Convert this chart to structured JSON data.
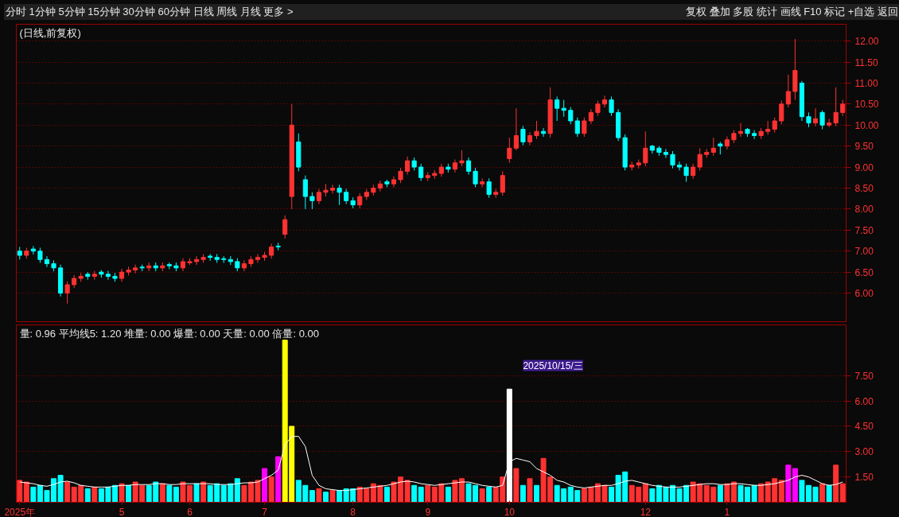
{
  "chart_data": [
    {
      "type": "candlestick",
      "title": "(日线,前复权)",
      "annotations": [
        "分时 1分钟 5分钟 15分钟 30分钟 60分钟 日线 周线 月线 更多 >",
        "复权 叠加 多股 统计 画线 F10 标记 +自选 返回"
      ],
      "categories": [
        null,
        null,
        null,
        null,
        null,
        null,
        null,
        null,
        null,
        null,
        null,
        null,
        null,
        null,
        null,
        null,
        null,
        null,
        null,
        null,
        null,
        null,
        null,
        null,
        null,
        null,
        null,
        null,
        null,
        null,
        null,
        null,
        null,
        null,
        null,
        null,
        null,
        null,
        null,
        null,
        null,
        null,
        null,
        null,
        null,
        null,
        null,
        null,
        null,
        null,
        null,
        null,
        null,
        null,
        null,
        null,
        null,
        null,
        null,
        null,
        null,
        null,
        null,
        null,
        null,
        null,
        null,
        null,
        null,
        null,
        null,
        null,
        null,
        null,
        null,
        null,
        null,
        null,
        null,
        null,
        null,
        null,
        null,
        null,
        null,
        null,
        null,
        null,
        null,
        null,
        null,
        null,
        null,
        null,
        null,
        null,
        null,
        null,
        null,
        null,
        null,
        null,
        null,
        null,
        null,
        null,
        null,
        null,
        null,
        null,
        null,
        null,
        null,
        null,
        null,
        null,
        null,
        null,
        null,
        null,
        null,
        null
      ],
      "ohlc": [
        [
          7.0,
          7.1,
          6.8,
          6.9
        ],
        [
          6.9,
          7.08,
          6.82,
          7.0
        ],
        [
          7.05,
          7.12,
          6.92,
          7.0
        ],
        [
          7.0,
          7.08,
          6.72,
          6.8
        ],
        [
          6.8,
          6.88,
          6.62,
          6.7
        ],
        [
          6.7,
          6.78,
          6.52,
          6.6
        ],
        [
          6.6,
          6.68,
          5.92,
          6.0
        ],
        [
          6.0,
          6.28,
          5.75,
          6.2
        ],
        [
          6.2,
          6.43,
          6.12,
          6.35
        ],
        [
          6.35,
          6.48,
          6.27,
          6.4
        ],
        [
          6.45,
          6.5,
          6.32,
          6.4
        ],
        [
          6.4,
          6.53,
          6.32,
          6.45
        ],
        [
          6.5,
          6.55,
          6.37,
          6.45
        ],
        [
          6.45,
          6.53,
          6.32,
          6.4
        ],
        [
          6.4,
          6.48,
          6.27,
          6.35
        ],
        [
          6.35,
          6.58,
          6.27,
          6.5
        ],
        [
          6.5,
          6.63,
          6.42,
          6.55
        ],
        [
          6.55,
          6.68,
          6.47,
          6.6
        ],
        [
          6.62,
          6.68,
          6.52,
          6.6
        ],
        [
          6.6,
          6.73,
          6.52,
          6.65
        ],
        [
          6.65,
          6.73,
          6.52,
          6.6
        ],
        [
          6.6,
          6.73,
          6.52,
          6.65
        ],
        [
          6.68,
          6.73,
          6.57,
          6.65
        ],
        [
          6.65,
          6.73,
          6.52,
          6.6
        ],
        [
          6.6,
          6.83,
          6.52,
          6.75
        ],
        [
          6.72,
          6.83,
          6.67,
          6.75
        ],
        [
          6.75,
          6.88,
          6.67,
          6.8
        ],
        [
          6.8,
          6.93,
          6.72,
          6.85
        ],
        [
          6.88,
          6.93,
          6.77,
          6.85
        ],
        [
          6.85,
          6.93,
          6.72,
          6.8
        ],
        [
          6.82,
          6.88,
          6.72,
          6.8
        ],
        [
          6.8,
          6.88,
          6.67,
          6.75
        ],
        [
          6.75,
          6.83,
          6.52,
          6.6
        ],
        [
          6.6,
          6.78,
          6.52,
          6.7
        ],
        [
          6.7,
          6.88,
          6.62,
          6.8
        ],
        [
          6.8,
          6.93,
          6.72,
          6.85
        ],
        [
          6.85,
          6.98,
          6.77,
          6.9
        ],
        [
          6.9,
          7.18,
          6.82,
          7.1
        ],
        [
          7.12,
          7.2,
          7.02,
          7.1
        ],
        [
          7.4,
          7.85,
          7.3,
          7.75
        ],
        [
          8.3,
          10.5,
          8.0,
          10.0
        ],
        [
          9.6,
          9.8,
          8.9,
          9.0
        ],
        [
          8.7,
          8.8,
          8.0,
          8.3
        ],
        [
          8.3,
          8.4,
          8.0,
          8.2
        ],
        [
          8.2,
          8.48,
          8.12,
          8.4
        ],
        [
          8.4,
          8.6,
          8.3,
          8.45
        ],
        [
          8.45,
          8.58,
          8.37,
          8.5
        ],
        [
          8.5,
          8.58,
          8.1,
          8.4
        ],
        [
          8.4,
          8.48,
          8.12,
          8.2
        ],
        [
          8.2,
          8.28,
          8.02,
          8.1
        ],
        [
          8.1,
          8.38,
          8.02,
          8.3
        ],
        [
          8.3,
          8.48,
          8.22,
          8.4
        ],
        [
          8.4,
          8.58,
          8.32,
          8.5
        ],
        [
          8.5,
          8.68,
          8.42,
          8.6
        ],
        [
          8.65,
          8.7,
          8.52,
          8.6
        ],
        [
          8.6,
          8.78,
          8.52,
          8.7
        ],
        [
          8.7,
          8.98,
          8.62,
          8.9
        ],
        [
          8.9,
          9.25,
          8.82,
          9.15
        ],
        [
          9.15,
          9.23,
          8.92,
          9.0
        ],
        [
          9.0,
          9.08,
          8.67,
          8.75
        ],
        [
          8.75,
          8.88,
          8.67,
          8.8
        ],
        [
          8.8,
          8.93,
          8.72,
          8.85
        ],
        [
          8.85,
          9.08,
          8.77,
          9.0
        ],
        [
          9.0,
          9.08,
          8.87,
          8.95
        ],
        [
          8.95,
          9.18,
          8.87,
          9.1
        ],
        [
          9.1,
          9.4,
          9.02,
          9.15
        ],
        [
          9.15,
          9.23,
          8.82,
          8.9
        ],
        [
          8.9,
          8.98,
          8.52,
          8.6
        ],
        [
          8.6,
          8.73,
          8.52,
          8.65
        ],
        [
          8.65,
          8.73,
          8.27,
          8.35
        ],
        [
          8.35,
          8.48,
          8.27,
          8.4
        ],
        [
          8.4,
          8.9,
          8.32,
          8.8
        ],
        [
          9.2,
          9.7,
          9.1,
          9.45
        ],
        [
          9.45,
          10.4,
          9.4,
          9.75
        ],
        [
          9.9,
          9.98,
          9.52,
          9.6
        ],
        [
          9.6,
          9.83,
          9.52,
          9.75
        ],
        [
          9.75,
          10.1,
          9.67,
          9.85
        ],
        [
          9.85,
          9.93,
          9.72,
          9.8
        ],
        [
          9.8,
          10.9,
          9.7,
          10.6
        ],
        [
          10.6,
          10.68,
          10.1,
          10.4
        ],
        [
          10.4,
          10.6,
          10.2,
          10.35
        ],
        [
          10.35,
          10.43,
          10.02,
          10.1
        ],
        [
          10.1,
          10.18,
          9.72,
          9.8
        ],
        [
          9.8,
          10.18,
          9.72,
          10.1
        ],
        [
          10.1,
          10.38,
          10.02,
          10.3
        ],
        [
          10.3,
          10.58,
          10.22,
          10.5
        ],
        [
          10.5,
          10.7,
          10.42,
          10.6
        ],
        [
          10.6,
          10.68,
          10.22,
          10.3
        ],
        [
          10.3,
          10.38,
          9.62,
          9.7
        ],
        [
          9.7,
          9.78,
          8.92,
          9.0
        ],
        [
          9.0,
          9.13,
          8.92,
          9.05
        ],
        [
          9.05,
          9.18,
          8.97,
          9.1
        ],
        [
          9.1,
          9.85,
          9.02,
          9.45
        ],
        [
          9.5,
          9.53,
          9.32,
          9.4
        ],
        [
          9.45,
          9.5,
          9.27,
          9.35
        ],
        [
          9.35,
          9.43,
          9.22,
          9.3
        ],
        [
          9.3,
          9.38,
          8.97,
          9.05
        ],
        [
          9.05,
          9.13,
          8.92,
          9.0
        ],
        [
          9.0,
          9.08,
          8.65,
          8.8
        ],
        [
          8.8,
          9.08,
          8.72,
          9.0
        ],
        [
          9.0,
          9.45,
          8.92,
          9.3
        ],
        [
          9.3,
          9.43,
          9.22,
          9.35
        ],
        [
          9.35,
          9.7,
          9.27,
          9.45
        ],
        [
          9.55,
          9.6,
          9.3,
          9.5
        ],
        [
          9.5,
          9.73,
          9.42,
          9.65
        ],
        [
          9.65,
          9.88,
          9.57,
          9.8
        ],
        [
          9.8,
          10.05,
          9.72,
          9.85
        ],
        [
          9.9,
          9.93,
          9.72,
          9.8
        ],
        [
          9.8,
          9.88,
          9.67,
          9.75
        ],
        [
          9.75,
          9.93,
          9.67,
          9.85
        ],
        [
          9.85,
          10.1,
          9.77,
          9.9
        ],
        [
          9.9,
          10.18,
          9.82,
          10.1
        ],
        [
          10.1,
          10.58,
          10.02,
          10.5
        ],
        [
          10.5,
          11.2,
          10.42,
          10.8
        ],
        [
          10.8,
          12.05,
          10.6,
          11.3
        ],
        [
          11.0,
          11.05,
          10.1,
          10.2
        ],
        [
          10.2,
          10.3,
          9.95,
          10.05
        ],
        [
          10.05,
          10.4,
          9.97,
          10.15
        ],
        [
          10.3,
          10.35,
          9.9,
          10.0
        ],
        [
          10.0,
          10.15,
          9.95,
          10.05
        ],
        [
          10.05,
          10.9,
          9.97,
          10.3
        ],
        [
          10.3,
          10.6,
          10.22,
          10.5
        ]
      ],
      "colors": [
        "#00ffff",
        "#ff3232",
        "#00ffff",
        "#00ffff",
        "#00ffff",
        "#00ffff",
        "#00ffff",
        "#ff3232",
        "#ff3232",
        "#ff3232",
        "#00ffff",
        "#ff3232",
        "#00ffff",
        "#00ffff",
        "#00ffff",
        "#ff3232",
        "#ff3232",
        "#ff3232",
        "#00ffff",
        "#ff3232",
        "#00ffff",
        "#ff3232",
        "#00ffff",
        "#00ffff",
        "#ff3232",
        "#ff3232",
        "#ff3232",
        "#ff3232",
        "#00ffff",
        "#00ffff",
        "#00ffff",
        "#00ffff",
        "#00ffff",
        "#ff3232",
        "#ff3232",
        "#ff3232",
        "#ff3232",
        "#ff3232",
        "#00ffff",
        "#ff3232",
        "#ff3232",
        "#00ffff",
        "#00ffff",
        "#00ffff",
        "#ff3232",
        "#ff3232",
        "#ff3232",
        "#00ffff",
        "#00ffff",
        "#00ffff",
        "#ff3232",
        "#ff3232",
        "#ff3232",
        "#ff3232",
        "#00ffff",
        "#ff3232",
        "#ff3232",
        "#ff3232",
        "#00ffff",
        "#00ffff",
        "#ff3232",
        "#ff3232",
        "#ff3232",
        "#00ffff",
        "#ff3232",
        "#ff3232",
        "#00ffff",
        "#00ffff",
        "#ff3232",
        "#00ffff",
        "#ff3232",
        "#ff3232",
        "#ff3232",
        "#ff3232",
        "#00ffff",
        "#ff3232",
        "#ff3232",
        "#00ffff",
        "#ff3232",
        "#00ffff",
        "#00ffff",
        "#00ffff",
        "#00ffff",
        "#ff3232",
        "#ff3232",
        "#ff3232",
        "#ff3232",
        "#00ffff",
        "#00ffff",
        "#00ffff",
        "#ff3232",
        "#ff3232",
        "#ff3232",
        "#00ffff",
        "#00ffff",
        "#00ffff",
        "#00ffff",
        "#00ffff",
        "#00ffff",
        "#ff3232",
        "#ff3232",
        "#ff3232",
        "#ff3232",
        "#00ffff",
        "#ff3232",
        "#ff3232",
        "#ff3232",
        "#00ffff",
        "#00ffff",
        "#ff3232",
        "#ff3232",
        "#ff3232",
        "#ff3232",
        "#ff3232",
        "#ff3232",
        "#00ffff",
        "#00ffff",
        "#ff3232",
        "#00ffff",
        "#ff3232",
        "#ff3232",
        "#ff3232"
      ],
      "ylim": [
        5.3,
        12.4
      ],
      "yticks": [
        {
          "value": 6,
          "label": "6.00"
        },
        {
          "value": 6.5,
          "label": "6.50"
        },
        {
          "value": 7,
          "label": "7.00"
        },
        {
          "value": 7.5,
          "label": "7.50"
        },
        {
          "value": 8,
          "label": "8.00"
        },
        {
          "value": 8.5,
          "label": "8.50"
        },
        {
          "value": 9,
          "label": "9.00"
        },
        {
          "value": 9.5,
          "label": "9.50"
        },
        {
          "value": 10,
          "label": "10.00"
        },
        {
          "value": 10.5,
          "label": "10.50"
        },
        {
          "value": 11,
          "label": "11.00"
        },
        {
          "value": 11.5,
          "label": "11.50"
        },
        {
          "value": 12,
          "label": "12.00"
        }
      ],
      "grid": "y"
    },
    {
      "type": "bar",
      "title": "量: 0.96 平均线5: 1.20 堆量: 0.00 爆量: 0.00 天量: 0.00 倍量: 0.00",
      "annotations": [
        "2025/10/15/三"
      ],
      "categories": [
        "2025年",
        null,
        null,
        null,
        null,
        null,
        null,
        null,
        null,
        null,
        null,
        null,
        null,
        null,
        null,
        "5",
        null,
        null,
        null,
        null,
        null,
        null,
        null,
        null,
        null,
        "6",
        null,
        null,
        null,
        null,
        null,
        null,
        null,
        null,
        null,
        null,
        "7",
        null,
        null,
        null,
        null,
        null,
        null,
        null,
        null,
        null,
        null,
        null,
        null,
        "8",
        null,
        null,
        null,
        null,
        null,
        null,
        null,
        null,
        null,
        null,
        "9",
        null,
        null,
        null,
        null,
        null,
        null,
        null,
        null,
        null,
        null,
        null,
        "10",
        null,
        null,
        null,
        null,
        null,
        null,
        null,
        null,
        null,
        null,
        null,
        null,
        null,
        null,
        null,
        null,
        null,
        null,
        null,
        "12",
        null,
        null,
        null,
        null,
        null,
        null,
        null,
        null,
        null,
        null,
        null,
        "1",
        null,
        null,
        null,
        null,
        null,
        null,
        null,
        null,
        null,
        null,
        null,
        null,
        null,
        null,
        null,
        null,
        null
      ],
      "series": [
        {
          "type": "bar",
          "values": [
            1.3,
            1.2,
            0.9,
            1.0,
            0.7,
            1.4,
            1.6,
            1.2,
            0.9,
            1.0,
            0.8,
            0.9,
            0.8,
            0.9,
            1.0,
            1.1,
            1.0,
            1.2,
            1.0,
            1.0,
            1.2,
            1.1,
            1.0,
            0.9,
            1.2,
            1.0,
            1.1,
            1.2,
            1.0,
            1.1,
            1.0,
            1.1,
            1.4,
            1.0,
            1.2,
            1.3,
            2.0,
            1.5,
            2.7,
            9.6,
            4.5,
            1.3,
            1.0,
            0.7,
            0.8,
            0.6,
            0.7,
            0.7,
            0.8,
            0.8,
            0.9,
            0.8,
            1.1,
            1.0,
            0.9,
            1.2,
            1.5,
            1.3,
            1.0,
            0.9,
            1.0,
            0.9,
            1.1,
            0.9,
            1.3,
            1.4,
            1.1,
            1.0,
            0.8,
            0.9,
            0.9,
            1.5,
            6.7,
            2.0,
            1.0,
            1.4,
            1.0,
            2.6,
            1.5,
            1.0,
            0.8,
            0.9,
            0.7,
            0.8,
            0.9,
            1.1,
            1.0,
            0.9,
            1.6,
            1.8,
            1.0,
            0.9,
            1.1,
            0.8,
            1.0,
            0.9,
            1.0,
            0.8,
            1.0,
            1.2,
            1.1,
            1.0,
            0.9,
            1.0,
            1.1,
            1.2,
            1.0,
            0.9,
            1.0,
            1.1,
            1.2,
            1.4,
            1.3,
            2.2,
            2.0,
            1.3,
            1.0,
            0.9,
            1.1,
            1.0,
            2.2,
            1.1
          ],
          "colors": [
            "#ff3232",
            "#ff3232",
            "#00ffff",
            "#00ffff",
            "#00ffff",
            "#00ffff",
            "#00ffff",
            "#ff3232",
            "#ff3232",
            "#ff3232",
            "#00ffff",
            "#ff3232",
            "#00ffff",
            "#00ffff",
            "#00ffff",
            "#ff3232",
            "#00ffff",
            "#ff3232",
            "#ff3232",
            "#00ffff",
            "#00ffff",
            "#ff3232",
            "#00ffff",
            "#00ffff",
            "#ff3232",
            "#ff3232",
            "#00ffff",
            "#ff3232",
            "#00ffff",
            "#00ffff",
            "#00ffff",
            "#00ffff",
            "#00ffff",
            "#ff3232",
            "#ff3232",
            "#ff3232",
            "#ff00ff",
            "#ff3232",
            "#ff00ff",
            "#ffff00",
            "#ffff00",
            "#00ffff",
            "#00ffff",
            "#00ffff",
            "#ff3232",
            "#00ffff",
            "#ff3232",
            "#00ffff",
            "#00ffff",
            "#00ffff",
            "#ff3232",
            "#ff3232",
            "#ff3232",
            "#ff3232",
            "#00ffff",
            "#ff3232",
            "#ff3232",
            "#ff3232",
            "#00ffff",
            "#00ffff",
            "#ff3232",
            "#ff3232",
            "#ff3232",
            "#00ffff",
            "#ff3232",
            "#ff3232",
            "#00ffff",
            "#00ffff",
            "#ff3232",
            "#00ffff",
            "#ff3232",
            "#ff3232",
            "#ffffff",
            "#ff3232",
            "#00ffff",
            "#ff3232",
            "#00ffff",
            "#ff3232",
            "#ff3232",
            "#00ffff",
            "#00ffff",
            "#00ffff",
            "#00ffff",
            "#ff3232",
            "#ff3232",
            "#ff3232",
            "#ff3232",
            "#00ffff",
            "#00ffff",
            "#00ffff",
            "#ff3232",
            "#ff3232",
            "#ff3232",
            "#00ffff",
            "#00ffff",
            "#00ffff",
            "#00ffff",
            "#00ffff",
            "#00ffff",
            "#ff3232",
            "#ff3232",
            "#ff3232",
            "#ff3232",
            "#00ffff",
            "#ff3232",
            "#ff3232",
            "#00ffff",
            "#00ffff",
            "#00ffff",
            "#ff3232",
            "#ff3232",
            "#ff3232",
            "#ff3232",
            "#ff00ff",
            "#ff00ff",
            "#00ffff",
            "#00ffff",
            "#00ffff",
            "#ff3232",
            "#00ffff",
            "#ff3232",
            "#ff3232"
          ]
        },
        {
          "type": "line",
          "color": "#ffffff",
          "values": [
            1.2,
            1.15,
            1.1,
            1.0,
            0.95,
            1.05,
            1.2,
            1.25,
            1.15,
            1.0,
            0.95,
            0.9,
            0.9,
            0.9,
            0.95,
            1.0,
            1.0,
            1.05,
            1.05,
            1.05,
            1.1,
            1.1,
            1.05,
            1.05,
            1.1,
            1.1,
            1.1,
            1.1,
            1.1,
            1.05,
            1.05,
            1.05,
            1.1,
            1.15,
            1.15,
            1.2,
            1.4,
            1.6,
            1.9,
            3.4,
            3.9,
            3.9,
            3.3,
            1.6,
            1.0,
            0.8,
            0.75,
            0.7,
            0.7,
            0.75,
            0.8,
            0.85,
            0.9,
            0.95,
            1.0,
            1.1,
            1.2,
            1.25,
            1.2,
            1.1,
            1.05,
            1.0,
            1.05,
            1.1,
            1.15,
            1.2,
            1.2,
            1.1,
            1.0,
            0.95,
            0.9,
            1.0,
            2.4,
            2.6,
            2.5,
            2.4,
            2.0,
            1.8,
            1.6,
            1.3,
            1.2,
            1.0,
            0.9,
            0.85,
            0.9,
            0.95,
            1.0,
            1.0,
            1.1,
            1.25,
            1.3,
            1.2,
            1.1,
            1.0,
            0.95,
            0.9,
            0.9,
            0.9,
            0.95,
            1.0,
            1.05,
            1.1,
            1.1,
            1.05,
            1.05,
            1.1,
            1.1,
            1.05,
            1.0,
            1.0,
            1.05,
            1.1,
            1.2,
            1.3,
            1.5,
            1.6,
            1.5,
            1.3,
            1.1,
            1.0,
            1.05,
            1.2
          ]
        }
      ],
      "ylim": [
        0,
        10.5
      ],
      "yticks": [
        {
          "value": 1.5,
          "label": "1.50"
        },
        {
          "value": 3,
          "label": "3.00"
        },
        {
          "value": 4.5,
          "label": "4.50"
        },
        {
          "value": 6,
          "label": "6.00"
        },
        {
          "value": 7.5,
          "label": "7.50"
        }
      ],
      "grid": "y"
    }
  ]
}
